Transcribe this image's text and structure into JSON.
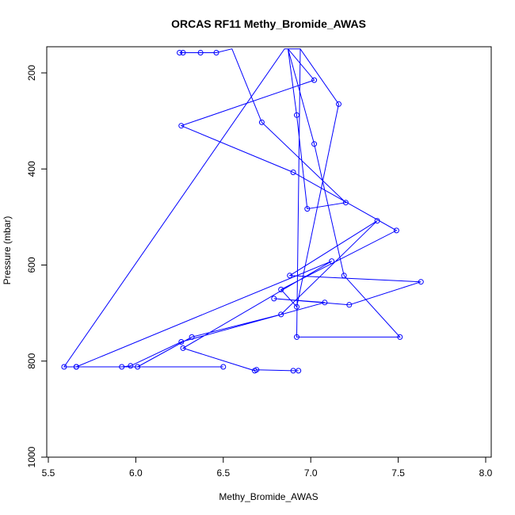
{
  "chart_data": {
    "type": "line",
    "title": "ORCAS RF11 Methy_Bromide_AWAS",
    "xlabel": "Methy_Bromide_AWAS",
    "ylabel": "Pressure (mbar)",
    "xlim": [
      5.5,
      8.0
    ],
    "ylim": [
      1000,
      150
    ],
    "y_reversed": true,
    "x_ticks": [
      5.5,
      6.0,
      6.5,
      7.0,
      7.5,
      8.0
    ],
    "x_tick_labels": [
      "5.5",
      "6.0",
      "6.5",
      "7.0",
      "7.5",
      "8.0"
    ],
    "y_ticks": [
      200,
      400,
      600,
      800,
      1000
    ],
    "y_tick_labels": [
      "200",
      "400",
      "600",
      "800",
      "1000"
    ],
    "grid": false,
    "legend": "none",
    "series_color": "#0000ff",
    "series": [
      {
        "values": [
          {
            "x": 6.25,
            "y": 158
          },
          {
            "x": 6.27,
            "y": 158
          },
          {
            "x": 6.37,
            "y": 158
          },
          {
            "x": 6.46,
            "y": 158
          },
          {
            "x": 6.55,
            "y": 150
          },
          {
            "x": 6.72,
            "y": 303
          },
          {
            "x": 7.2,
            "y": 470
          },
          {
            "x": 6.98,
            "y": 483
          },
          {
            "x": 6.92,
            "y": 288
          },
          {
            "x": 6.87,
            "y": 150
          },
          {
            "x": 6.94,
            "y": 150
          },
          {
            "x": 6.92,
            "y": 750
          },
          {
            "x": 7.51,
            "y": 750
          },
          {
            "x": 7.19,
            "y": 622
          },
          {
            "x": 7.02,
            "y": 348
          },
          {
            "x": 6.87,
            "y": 150
          },
          {
            "x": 7.02,
            "y": 215
          },
          {
            "x": 6.26,
            "y": 310
          },
          {
            "x": 6.9,
            "y": 407
          },
          {
            "x": 7.49,
            "y": 528
          },
          {
            "x": 6.83,
            "y": 651
          },
          {
            "x": 6.92,
            "y": 687
          },
          {
            "x": 7.16,
            "y": 265
          },
          {
            "x": 6.94,
            "y": 150
          },
          {
            "x": 6.85,
            "y": 150
          },
          {
            "x": 5.59,
            "y": 812
          },
          {
            "x": 5.66,
            "y": 812
          },
          {
            "x": 5.92,
            "y": 812
          },
          {
            "x": 5.97,
            "y": 810
          },
          {
            "x": 6.26,
            "y": 760
          },
          {
            "x": 7.08,
            "y": 678
          },
          {
            "x": 6.79,
            "y": 670
          },
          {
            "x": 7.22,
            "y": 683
          },
          {
            "x": 7.63,
            "y": 635
          },
          {
            "x": 6.88,
            "y": 622
          },
          {
            "x": 7.38,
            "y": 508
          },
          {
            "x": 6.83,
            "y": 703
          },
          {
            "x": 6.32,
            "y": 750
          },
          {
            "x": 6.01,
            "y": 812
          },
          {
            "x": 6.5,
            "y": 812
          },
          {
            "x": 5.66,
            "y": 812
          },
          {
            "x": 7.12,
            "y": 592
          },
          {
            "x": 6.27,
            "y": 773
          },
          {
            "x": 6.68,
            "y": 820
          },
          {
            "x": 6.69,
            "y": 818
          },
          {
            "x": 6.9,
            "y": 820
          },
          {
            "x": 6.93,
            "y": 820
          }
        ]
      }
    ]
  }
}
